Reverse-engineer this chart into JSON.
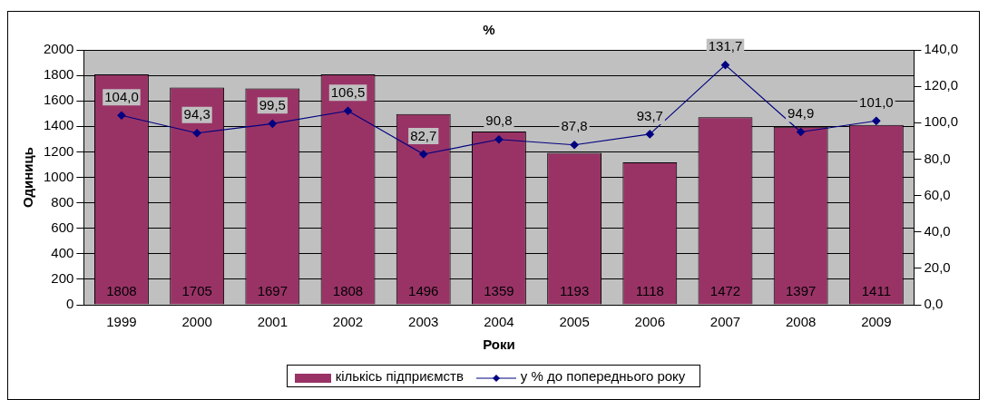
{
  "chart_data": {
    "type": "bar",
    "title": "%",
    "xlabel": "Роки",
    "ylabel": "Одиниць",
    "categories": [
      "1999",
      "2000",
      "2001",
      "2002",
      "2003",
      "2004",
      "2005",
      "2006",
      "2007",
      "2008",
      "2009"
    ],
    "series": [
      {
        "name": "кількісь підприємств",
        "color": "#993366",
        "values": [
          1808,
          1705,
          1697,
          1808,
          1496,
          1359,
          1193,
          1118,
          1472,
          1397,
          1411
        ],
        "value_labels": [
          "1808",
          "1705",
          "1697",
          "1808",
          "1496",
          "1359",
          "1193",
          "1118",
          "1472",
          "1397",
          "1411"
        ]
      },
      {
        "name": "у % до попереднього року",
        "type": "line",
        "axis": "y2",
        "color": "#000080",
        "values": [
          104.0,
          94.3,
          99.5,
          106.5,
          82.7,
          90.8,
          87.8,
          93.7,
          131.7,
          94.9,
          101.0
        ],
        "value_labels": [
          "104,0",
          "94,3",
          "99,5",
          "106,5",
          "82,7",
          "90,8",
          "87,8",
          "93,7",
          "131,7",
          "94,9",
          "101,0"
        ]
      }
    ],
    "ylim": [
      0,
      2000
    ],
    "yticks": [
      0,
      200,
      400,
      600,
      800,
      1000,
      1200,
      1400,
      1600,
      1800,
      2000
    ],
    "y2lim": [
      0,
      140
    ],
    "y2ticks": [
      {
        "value": 0,
        "label": "0,0"
      },
      {
        "value": 20,
        "label": "20,0"
      },
      {
        "value": 40,
        "label": "40,0"
      },
      {
        "value": 60,
        "label": "60,0"
      },
      {
        "value": 80,
        "label": "80,0"
      },
      {
        "value": 100,
        "label": "100,0"
      },
      {
        "value": 120,
        "label": "120,0"
      },
      {
        "value": 140,
        "label": "140,0"
      }
    ],
    "grid": "y",
    "legend": "bottom",
    "marker": "diamond",
    "line_style": "solid"
  }
}
